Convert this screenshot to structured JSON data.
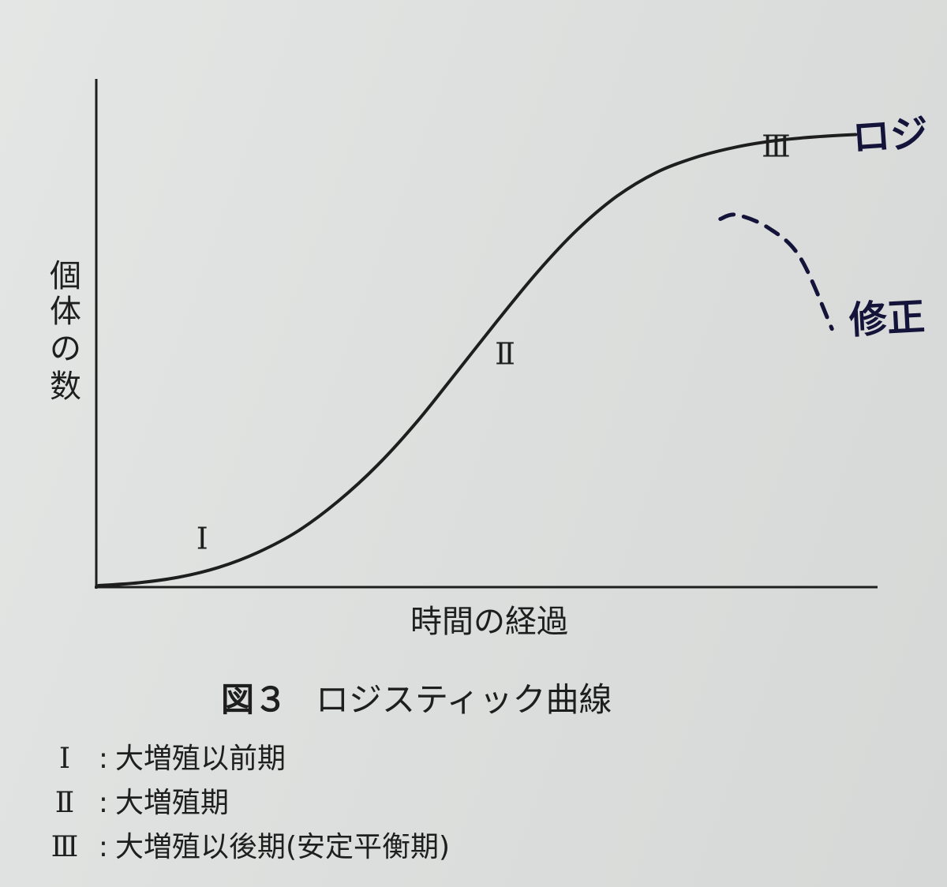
{
  "chart_data": {
    "type": "line",
    "xlabel": "時間の経過",
    "ylabel": "個体の数",
    "title": "ロジスティック曲線",
    "figure_number": "図３",
    "grid": false,
    "xlim": [
      0,
      100
    ],
    "ylim": [
      0,
      100
    ],
    "series": [
      {
        "style": "solid",
        "x": [
          0,
          5,
          10,
          15,
          20,
          25,
          30,
          35,
          40,
          45,
          50,
          55,
          60,
          65,
          70,
          75,
          80,
          85,
          90,
          95
        ],
        "y": [
          0,
          0.6,
          1.8,
          3.9,
          7.2,
          11.8,
          18.2,
          26.1,
          35.6,
          46.4,
          57.3,
          67.8,
          77.0,
          84.3,
          89.5,
          92.8,
          95.0,
          96.4,
          97.2,
          97.7
        ]
      },
      {
        "style": "dashed",
        "x": [
          78,
          80,
          84,
          88,
          92
        ],
        "y": [
          79.4,
          80.3,
          77.5,
          71.1,
          55.6
        ]
      }
    ],
    "phase_labels": [
      {
        "label": "Ⅰ",
        "x": 13,
        "y": 10
      },
      {
        "label": "Ⅱ",
        "x": 51,
        "y": 50
      },
      {
        "label": "Ⅲ",
        "x": 85,
        "y": 95
      }
    ],
    "legend": [
      {
        "num": "Ⅰ",
        "desc": "大増殖以前期"
      },
      {
        "num": "Ⅱ",
        "desc": "大増殖期"
      },
      {
        "num": "Ⅲ",
        "desc": "大増殖以後期(安定平衡期)"
      }
    ],
    "handwritten_annotations": [
      {
        "text": "ロジ"
      },
      {
        "text": "修正"
      }
    ]
  }
}
